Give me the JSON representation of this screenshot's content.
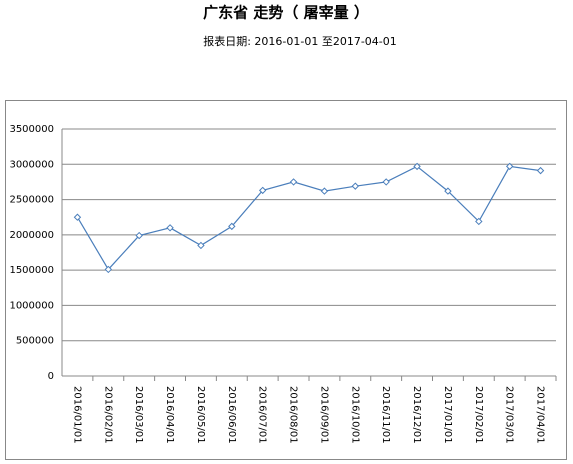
{
  "chart_data": {
    "type": "line",
    "title": "广东省 走势（ 屠宰量 ）",
    "subtitle": "报表日期: 2016-01-01 至2017-04-01",
    "categories": [
      "2016/01/01",
      "2016/02/01",
      "2016/03/01",
      "2016/04/01",
      "2016/05/01",
      "2016/06/01",
      "2016/07/01",
      "2016/08/01",
      "2016/09/01",
      "2016/10/01",
      "2016/11/01",
      "2016/12/01",
      "2017/01/01",
      "2017/02/01",
      "2017/03/01",
      "2017/04/01"
    ],
    "values": [
      2250000,
      1510000,
      1990000,
      2100000,
      1850000,
      2120000,
      2630000,
      2750000,
      2620000,
      2690000,
      2750000,
      2970000,
      2620000,
      2190000,
      2970000,
      2910000
    ],
    "color": "#4a7ebb",
    "ylim": [
      0,
      3500000
    ],
    "yticks": [
      0,
      500000,
      1000000,
      1500000,
      2000000,
      2500000,
      3000000,
      3500000
    ],
    "grid": true
  }
}
